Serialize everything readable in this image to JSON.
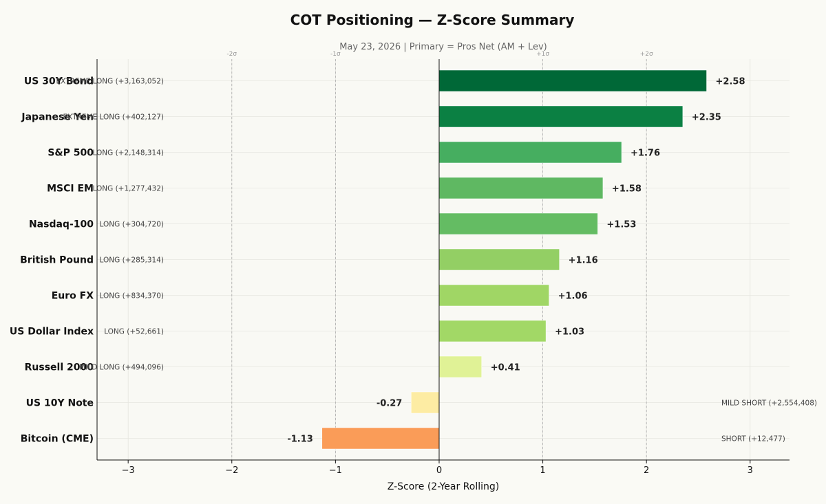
{
  "chart_data": {
    "type": "bar",
    "orientation": "horizontal",
    "title": "COT Positioning — Z-Score Summary",
    "subtitle": "May 23, 2026 | Primary = Pros Net (AM + Lev)",
    "xlabel": "Z-Score (2-Year Rolling)",
    "xlim": [
      -3.3,
      3.38
    ],
    "xticks": [
      -3,
      -2,
      -1,
      0,
      1,
      2,
      3
    ],
    "xtick_labels": [
      "−3",
      "−2",
      "−1",
      "0",
      "1",
      "2",
      "3"
    ],
    "sigma_lines": [
      {
        "value": -2,
        "label": "-2σ"
      },
      {
        "value": -1,
        "label": "-1σ"
      },
      {
        "value": 1,
        "label": "+1σ"
      },
      {
        "value": 2,
        "label": "+2σ"
      }
    ],
    "grid": true,
    "categories": [
      "US 30Y Bond",
      "Japanese Yen",
      "S&P 500",
      "MSCI EM",
      "Nasdaq-100",
      "British Pound",
      "Euro FX",
      "US Dollar Index",
      "Russell 2000",
      "US 10Y Note",
      "Bitcoin (CME)"
    ],
    "values": [
      2.58,
      2.35,
      1.76,
      1.58,
      1.53,
      1.16,
      1.06,
      1.03,
      0.41,
      -0.27,
      -1.13
    ],
    "value_labels": [
      "+2.58",
      "+2.35",
      "+1.76",
      "+1.58",
      "+1.53",
      "+1.16",
      "+1.06",
      "+1.03",
      "+0.41",
      "-0.27",
      "-1.13"
    ],
    "position_labels": [
      "EXTREME LONG (+3,163,052)",
      "EXTREME LONG (+402,127)",
      "LONG (+2,148,314)",
      "LONG (+1,277,432)",
      "LONG (+304,720)",
      "LONG (+285,314)",
      "LONG (+834,370)",
      "LONG (+52,661)",
      "MILD LONG (+494,096)",
      "MILD SHORT (+2,554,408)",
      "SHORT (+12,477)"
    ],
    "colors": [
      "#006837",
      "#0b8043",
      "#46ae60",
      "#5fb862",
      "#64bc63",
      "#93cf64",
      "#a0d665",
      "#a2d866",
      "#e0f296",
      "#fdeca3",
      "#fa9c58"
    ]
  }
}
